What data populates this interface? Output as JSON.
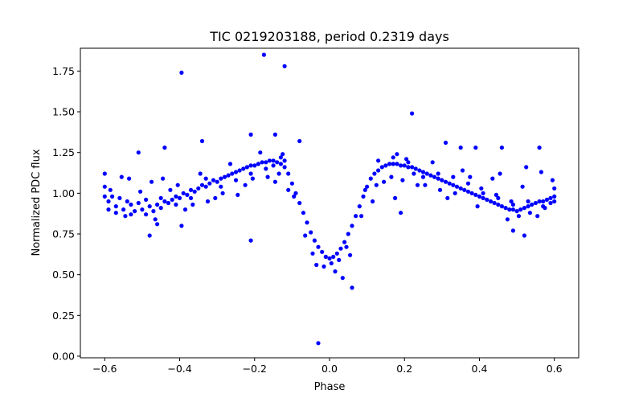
{
  "chart_data": {
    "type": "scatter",
    "title": "TIC 0219203188, period 0.2319 days",
    "xlabel": "Phase",
    "ylabel": "Normalized PDC flux",
    "xlim": [
      -0.665,
      0.665
    ],
    "ylim": [
      -0.01,
      1.89
    ],
    "grid": false,
    "marker_color": "#0000ff",
    "x_ticks": [
      {
        "value": -0.6,
        "label": "−0.6"
      },
      {
        "value": -0.4,
        "label": "−0.4"
      },
      {
        "value": -0.2,
        "label": "−0.2"
      },
      {
        "value": 0.0,
        "label": "0.0"
      },
      {
        "value": 0.2,
        "label": "0.2"
      },
      {
        "value": 0.4,
        "label": "0.4"
      },
      {
        "value": 0.6,
        "label": "0.6"
      }
    ],
    "y_ticks": [
      {
        "value": 0.0,
        "label": "0.00"
      },
      {
        "value": 0.25,
        "label": "0.25"
      },
      {
        "value": 0.5,
        "label": "0.50"
      },
      {
        "value": 0.75,
        "label": "0.75"
      },
      {
        "value": 1.0,
        "label": "1.00"
      },
      {
        "value": 1.25,
        "label": "1.25"
      },
      {
        "value": 1.5,
        "label": "1.50"
      },
      {
        "value": 1.75,
        "label": "1.75"
      }
    ],
    "points": [
      [
        -0.6,
        1.12
      ],
      [
        -0.59,
        0.95
      ],
      [
        -0.58,
        0.98
      ],
      [
        -0.57,
        0.92
      ],
      [
        -0.56,
        0.97
      ],
      [
        -0.55,
        0.9
      ],
      [
        -0.54,
        0.95
      ],
      [
        -0.53,
        0.93
      ],
      [
        -0.52,
        0.89
      ],
      [
        -0.51,
        0.94
      ],
      [
        -0.5,
        0.9
      ],
      [
        -0.49,
        0.87
      ],
      [
        -0.48,
        0.92
      ],
      [
        -0.47,
        0.89
      ],
      [
        -0.46,
        0.93
      ],
      [
        -0.45,
        0.91
      ],
      [
        -0.44,
        0.95
      ],
      [
        -0.43,
        0.94
      ],
      [
        -0.42,
        0.96
      ],
      [
        -0.41,
        0.98
      ],
      [
        -0.4,
        0.97
      ],
      [
        -0.39,
        1.0
      ],
      [
        -0.38,
        0.99
      ],
      [
        -0.37,
        1.02
      ],
      [
        -0.36,
        1.01
      ],
      [
        -0.35,
        1.03
      ],
      [
        -0.34,
        1.05
      ],
      [
        -0.33,
        1.04
      ],
      [
        -0.32,
        1.06
      ],
      [
        -0.31,
        1.08
      ],
      [
        -0.3,
        1.07
      ],
      [
        -0.29,
        1.09
      ],
      [
        -0.28,
        1.1
      ],
      [
        -0.27,
        1.11
      ],
      [
        -0.26,
        1.12
      ],
      [
        -0.25,
        1.13
      ],
      [
        -0.24,
        1.14
      ],
      [
        -0.23,
        1.15
      ],
      [
        -0.22,
        1.16
      ],
      [
        -0.21,
        1.17
      ],
      [
        -0.2,
        1.17
      ],
      [
        -0.19,
        1.18
      ],
      [
        -0.18,
        1.19
      ],
      [
        -0.17,
        1.19
      ],
      [
        -0.16,
        1.2
      ],
      [
        -0.15,
        1.2
      ],
      [
        -0.14,
        1.19
      ],
      [
        -0.13,
        1.18
      ],
      [
        -0.12,
        1.16
      ],
      [
        -0.11,
        1.12
      ],
      [
        -0.1,
        1.06
      ],
      [
        -0.09,
        1.0
      ],
      [
        -0.08,
        0.94
      ],
      [
        -0.07,
        0.88
      ],
      [
        -0.06,
        0.82
      ],
      [
        -0.05,
        0.76
      ],
      [
        -0.04,
        0.71
      ],
      [
        -0.03,
        0.67
      ],
      [
        -0.02,
        0.64
      ],
      [
        -0.01,
        0.61
      ],
      [
        0.0,
        0.6
      ],
      [
        0.01,
        0.61
      ],
      [
        0.02,
        0.63
      ],
      [
        0.03,
        0.66
      ],
      [
        0.04,
        0.7
      ],
      [
        0.05,
        0.75
      ],
      [
        0.06,
        0.8
      ],
      [
        0.07,
        0.86
      ],
      [
        0.08,
        0.92
      ],
      [
        0.09,
        0.98
      ],
      [
        0.1,
        1.04
      ],
      [
        0.11,
        1.09
      ],
      [
        0.12,
        1.12
      ],
      [
        0.13,
        1.14
      ],
      [
        0.14,
        1.16
      ],
      [
        0.15,
        1.17
      ],
      [
        0.16,
        1.18
      ],
      [
        0.17,
        1.18
      ],
      [
        0.18,
        1.18
      ],
      [
        0.19,
        1.17
      ],
      [
        0.2,
        1.17
      ],
      [
        0.21,
        1.16
      ],
      [
        0.22,
        1.16
      ],
      [
        0.23,
        1.15
      ],
      [
        0.24,
        1.14
      ],
      [
        0.25,
        1.13
      ],
      [
        0.26,
        1.12
      ],
      [
        0.27,
        1.11
      ],
      [
        0.28,
        1.1
      ],
      [
        0.29,
        1.09
      ],
      [
        0.3,
        1.08
      ],
      [
        0.31,
        1.07
      ],
      [
        0.32,
        1.06
      ],
      [
        0.33,
        1.05
      ],
      [
        0.34,
        1.04
      ],
      [
        0.35,
        1.03
      ],
      [
        0.36,
        1.02
      ],
      [
        0.37,
        1.01
      ],
      [
        0.38,
        1.0
      ],
      [
        0.39,
        0.99
      ],
      [
        0.4,
        0.98
      ],
      [
        0.41,
        0.97
      ],
      [
        0.42,
        0.96
      ],
      [
        0.43,
        0.95
      ],
      [
        0.44,
        0.94
      ],
      [
        0.45,
        0.93
      ],
      [
        0.46,
        0.92
      ],
      [
        0.47,
        0.91
      ],
      [
        0.48,
        0.9
      ],
      [
        0.49,
        0.9
      ],
      [
        0.5,
        0.89
      ],
      [
        0.51,
        0.9
      ],
      [
        0.52,
        0.91
      ],
      [
        0.53,
        0.92
      ],
      [
        0.54,
        0.93
      ],
      [
        0.55,
        0.94
      ],
      [
        0.56,
        0.95
      ],
      [
        0.57,
        0.95
      ],
      [
        0.58,
        0.96
      ],
      [
        0.59,
        0.97
      ],
      [
        0.6,
        0.98
      ],
      [
        -0.585,
        1.02
      ],
      [
        -0.545,
        0.86
      ],
      [
        -0.505,
        1.01
      ],
      [
        -0.465,
        0.84
      ],
      [
        -0.425,
        1.02
      ],
      [
        -0.385,
        0.9
      ],
      [
        -0.345,
        1.12
      ],
      [
        -0.305,
        0.97
      ],
      [
        -0.265,
        1.18
      ],
      [
        -0.225,
        1.05
      ],
      [
        -0.185,
        1.25
      ],
      [
        -0.145,
        1.07
      ],
      [
        -0.125,
        1.24
      ],
      [
        -0.095,
        0.98
      ],
      [
        -0.065,
        0.74
      ],
      [
        -0.035,
        0.56
      ],
      [
        0.015,
        0.52
      ],
      [
        0.035,
        0.48
      ],
      [
        0.055,
        0.62
      ],
      [
        0.085,
        0.86
      ],
      [
        0.115,
        0.95
      ],
      [
        0.145,
        1.07
      ],
      [
        0.175,
        0.97
      ],
      [
        0.205,
        1.21
      ],
      [
        0.235,
        1.05
      ],
      [
        0.275,
        1.19
      ],
      [
        0.315,
        0.97
      ],
      [
        0.355,
        1.14
      ],
      [
        0.395,
        0.92
      ],
      [
        0.435,
        1.09
      ],
      [
        0.475,
        0.84
      ],
      [
        0.515,
        1.04
      ],
      [
        0.555,
        0.86
      ],
      [
        0.595,
        1.08
      ],
      [
        0.565,
        1.13
      ],
      [
        0.525,
        1.16
      ],
      [
        0.455,
        1.12
      ],
      [
        0.375,
        1.1
      ],
      [
        -0.555,
        1.1
      ],
      [
        -0.535,
        1.09
      ],
      [
        -0.475,
        1.07
      ],
      [
        -0.445,
        1.09
      ],
      [
        -0.405,
        1.05
      ],
      [
        -0.365,
        0.93
      ],
      [
        -0.325,
        0.95
      ],
      [
        -0.285,
        1.0
      ],
      [
        -0.245,
        0.99
      ],
      [
        -0.205,
        1.09
      ],
      [
        -0.165,
        1.1
      ],
      [
        -0.135,
        1.12
      ],
      [
        -0.11,
        1.02
      ],
      [
        -0.045,
        0.63
      ],
      [
        -0.015,
        0.55
      ],
      [
        0.005,
        0.57
      ],
      [
        0.025,
        0.59
      ],
      [
        0.045,
        0.67
      ],
      [
        0.095,
        1.02
      ],
      [
        0.125,
        1.05
      ],
      [
        0.165,
        1.1
      ],
      [
        0.195,
        1.08
      ],
      [
        0.225,
        1.12
      ],
      [
        0.255,
        1.05
      ],
      [
        0.295,
        1.02
      ],
      [
        0.335,
        1.0
      ],
      [
        0.405,
        1.03
      ],
      [
        0.445,
        0.99
      ],
      [
        0.485,
        0.95
      ],
      [
        0.505,
        0.86
      ],
      [
        0.535,
        0.88
      ],
      [
        0.575,
        0.91
      ],
      [
        -0.59,
        0.9
      ],
      [
        -0.57,
        0.88
      ],
      [
        -0.53,
        0.87
      ],
      [
        -0.49,
        0.96
      ],
      [
        -0.45,
        0.97
      ],
      [
        -0.41,
        0.93
      ],
      [
        -0.37,
        0.97
      ],
      [
        -0.33,
        1.09
      ],
      [
        -0.29,
        1.04
      ],
      [
        -0.25,
        1.08
      ],
      [
        -0.21,
        1.12
      ],
      [
        -0.17,
        1.15
      ],
      [
        -0.15,
        1.17
      ],
      [
        -0.13,
        1.22
      ],
      [
        -0.12,
        1.2
      ],
      [
        0.13,
        1.2
      ],
      [
        0.17,
        1.22
      ],
      [
        0.21,
        1.19
      ],
      [
        0.25,
        1.1
      ],
      [
        0.29,
        1.12
      ],
      [
        0.33,
        1.1
      ],
      [
        0.37,
        1.06
      ],
      [
        0.41,
        1.0
      ],
      [
        0.45,
        0.97
      ],
      [
        0.49,
        0.93
      ],
      [
        0.53,
        0.95
      ],
      [
        0.57,
        0.92
      ],
      [
        0.59,
        0.94
      ],
      [
        0.6,
        1.03
      ],
      [
        0.6,
        0.95
      ],
      [
        -0.6,
        0.98
      ],
      [
        -0.6,
        1.04
      ],
      [
        -0.395,
        1.74
      ],
      [
        -0.175,
        1.85
      ],
      [
        -0.12,
        1.78
      ],
      [
        0.22,
        1.49
      ],
      [
        -0.21,
        1.36
      ],
      [
        -0.145,
        1.36
      ],
      [
        -0.08,
        1.32
      ],
      [
        -0.34,
        1.32
      ],
      [
        -0.44,
        1.28
      ],
      [
        -0.51,
        1.25
      ],
      [
        0.31,
        1.31
      ],
      [
        0.35,
        1.28
      ],
      [
        0.39,
        1.28
      ],
      [
        0.46,
        1.28
      ],
      [
        0.56,
        1.28
      ],
      [
        0.18,
        1.24
      ],
      [
        -0.21,
        0.71
      ],
      [
        -0.03,
        0.08
      ],
      [
        0.06,
        0.42
      ],
      [
        -0.395,
        0.8
      ],
      [
        -0.48,
        0.74
      ],
      [
        -0.46,
        0.81
      ],
      [
        0.52,
        0.74
      ],
      [
        0.49,
        0.77
      ],
      [
        0.19,
        0.88
      ]
    ]
  }
}
